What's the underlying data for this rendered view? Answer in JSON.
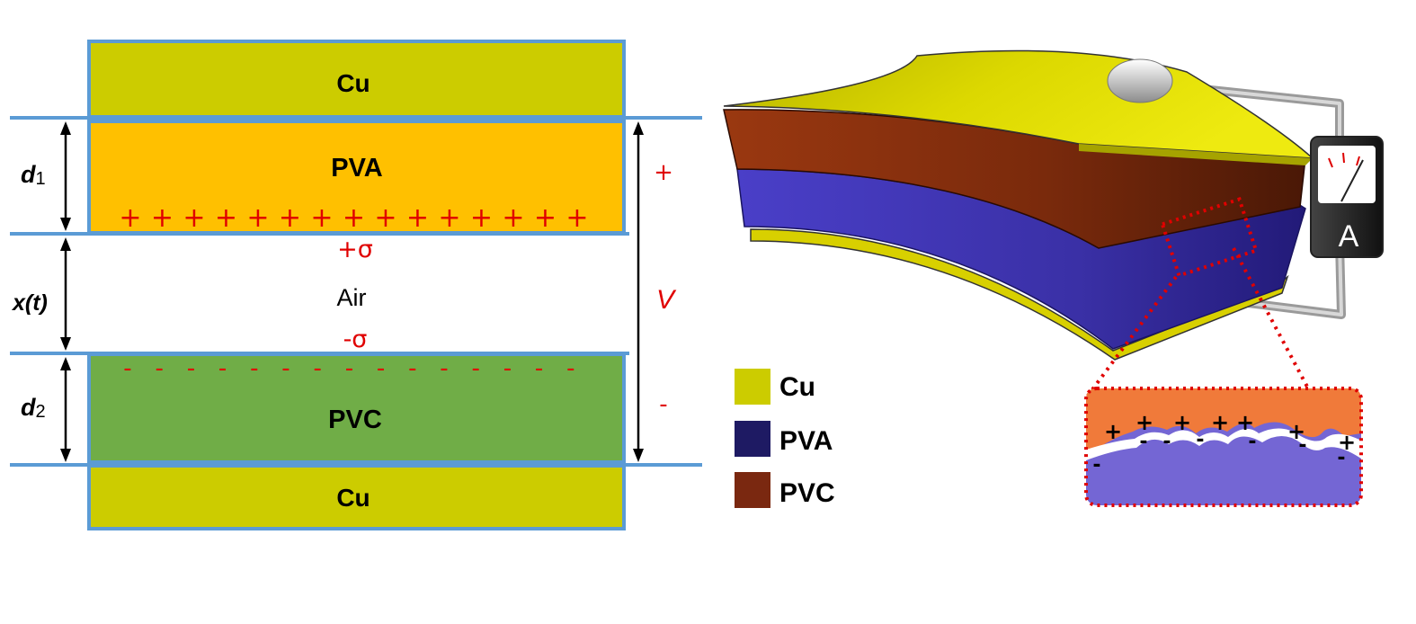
{
  "left_diagram": {
    "top_electrode": "Cu",
    "upper_layer": "PVA",
    "gap": "Air",
    "lower_layer": "PVC",
    "bottom_electrode": "Cu",
    "d1_main": "d",
    "d1_sub": "1",
    "gap_label": "x(t)",
    "d2_main": "d",
    "d2_sub": "2",
    "plus_sigma": "+σ",
    "minus_sigma": "-σ",
    "voltage": "V",
    "voltage_plus": "+",
    "voltage_minus": "-",
    "positive_charge": "+",
    "negative_charge": "-",
    "positive_count": 15,
    "negative_count": 15
  },
  "legend": {
    "items": [
      {
        "label": "Cu",
        "color": "#cccc00"
      },
      {
        "label": "PVA",
        "color": "#1e1a63"
      },
      {
        "label": "PVC",
        "color": "#7a2810"
      }
    ]
  },
  "device": {
    "meter_label": "A",
    "inset_positive": "+",
    "inset_negative": "-"
  },
  "colors": {
    "frame_blue": "#5b9bd5",
    "cu": "#cccc00",
    "pva_orange": "#ffc000",
    "pvc_green": "#70ad47",
    "charge_red": "#e00000",
    "device_pvc": "#7a2810",
    "device_pva": "#3b33a8",
    "inset_top": "#f07a3a",
    "inset_bottom": "#7466d4"
  }
}
